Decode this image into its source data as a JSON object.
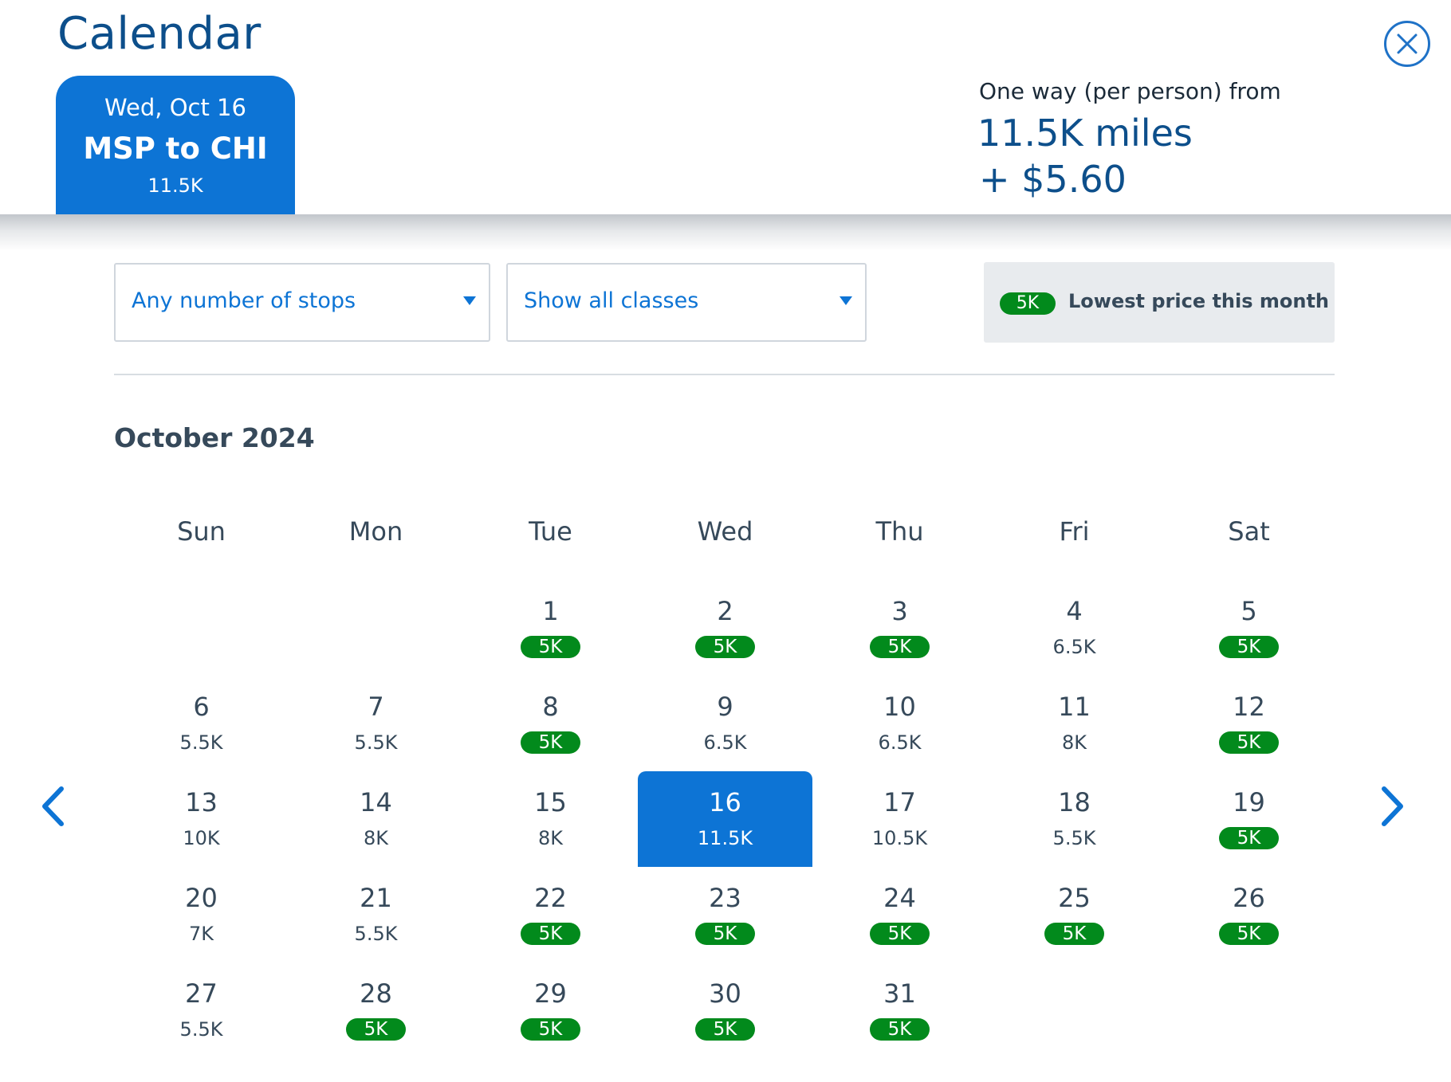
{
  "header": {
    "title": "Calendar",
    "trip": {
      "date": "Wed, Oct 16",
      "route": "MSP to CHI",
      "price": "11.5K"
    },
    "fare": {
      "label": "One way (per person) from",
      "miles": "11.5K miles",
      "cash": "+ $5.60"
    }
  },
  "filters": {
    "stops": "Any number of stops",
    "classes": "Show all classes"
  },
  "legend": {
    "badge": "5K",
    "text": "Lowest price this month"
  },
  "colors": {
    "brand_blue": "#0d74d5",
    "title_blue": "#0d4f8b",
    "low_price_green": "#028a1c"
  },
  "calendar": {
    "month": "October 2024",
    "weekdays": [
      "Sun",
      "Mon",
      "Tue",
      "Wed",
      "Thu",
      "Fri",
      "Sat"
    ],
    "first_weekday_index": 2,
    "selected_day": 16,
    "days": [
      {
        "day": "1",
        "price": "5K",
        "lowest": true
      },
      {
        "day": "2",
        "price": "5K",
        "lowest": true
      },
      {
        "day": "3",
        "price": "5K",
        "lowest": true
      },
      {
        "day": "4",
        "price": "6.5K",
        "lowest": false
      },
      {
        "day": "5",
        "price": "5K",
        "lowest": true
      },
      {
        "day": "6",
        "price": "5.5K",
        "lowest": false
      },
      {
        "day": "7",
        "price": "5.5K",
        "lowest": false
      },
      {
        "day": "8",
        "price": "5K",
        "lowest": true
      },
      {
        "day": "9",
        "price": "6.5K",
        "lowest": false
      },
      {
        "day": "10",
        "price": "6.5K",
        "lowest": false
      },
      {
        "day": "11",
        "price": "8K",
        "lowest": false
      },
      {
        "day": "12",
        "price": "5K",
        "lowest": true
      },
      {
        "day": "13",
        "price": "10K",
        "lowest": false
      },
      {
        "day": "14",
        "price": "8K",
        "lowest": false
      },
      {
        "day": "15",
        "price": "8K",
        "lowest": false
      },
      {
        "day": "16",
        "price": "11.5K",
        "lowest": false
      },
      {
        "day": "17",
        "price": "10.5K",
        "lowest": false
      },
      {
        "day": "18",
        "price": "5.5K",
        "lowest": false
      },
      {
        "day": "19",
        "price": "5K",
        "lowest": true
      },
      {
        "day": "20",
        "price": "7K",
        "lowest": false
      },
      {
        "day": "21",
        "price": "5.5K",
        "lowest": false
      },
      {
        "day": "22",
        "price": "5K",
        "lowest": true
      },
      {
        "day": "23",
        "price": "5K",
        "lowest": true
      },
      {
        "day": "24",
        "price": "5K",
        "lowest": true
      },
      {
        "day": "25",
        "price": "5K",
        "lowest": true
      },
      {
        "day": "26",
        "price": "5K",
        "lowest": true
      },
      {
        "day": "27",
        "price": "5.5K",
        "lowest": false
      },
      {
        "day": "28",
        "price": "5K",
        "lowest": true
      },
      {
        "day": "29",
        "price": "5K",
        "lowest": true
      },
      {
        "day": "30",
        "price": "5K",
        "lowest": true
      },
      {
        "day": "31",
        "price": "5K",
        "lowest": true
      }
    ]
  },
  "nav": {
    "prev_icon": "chevron-left-icon",
    "next_icon": "chevron-right-icon",
    "close_icon": "close-icon"
  }
}
